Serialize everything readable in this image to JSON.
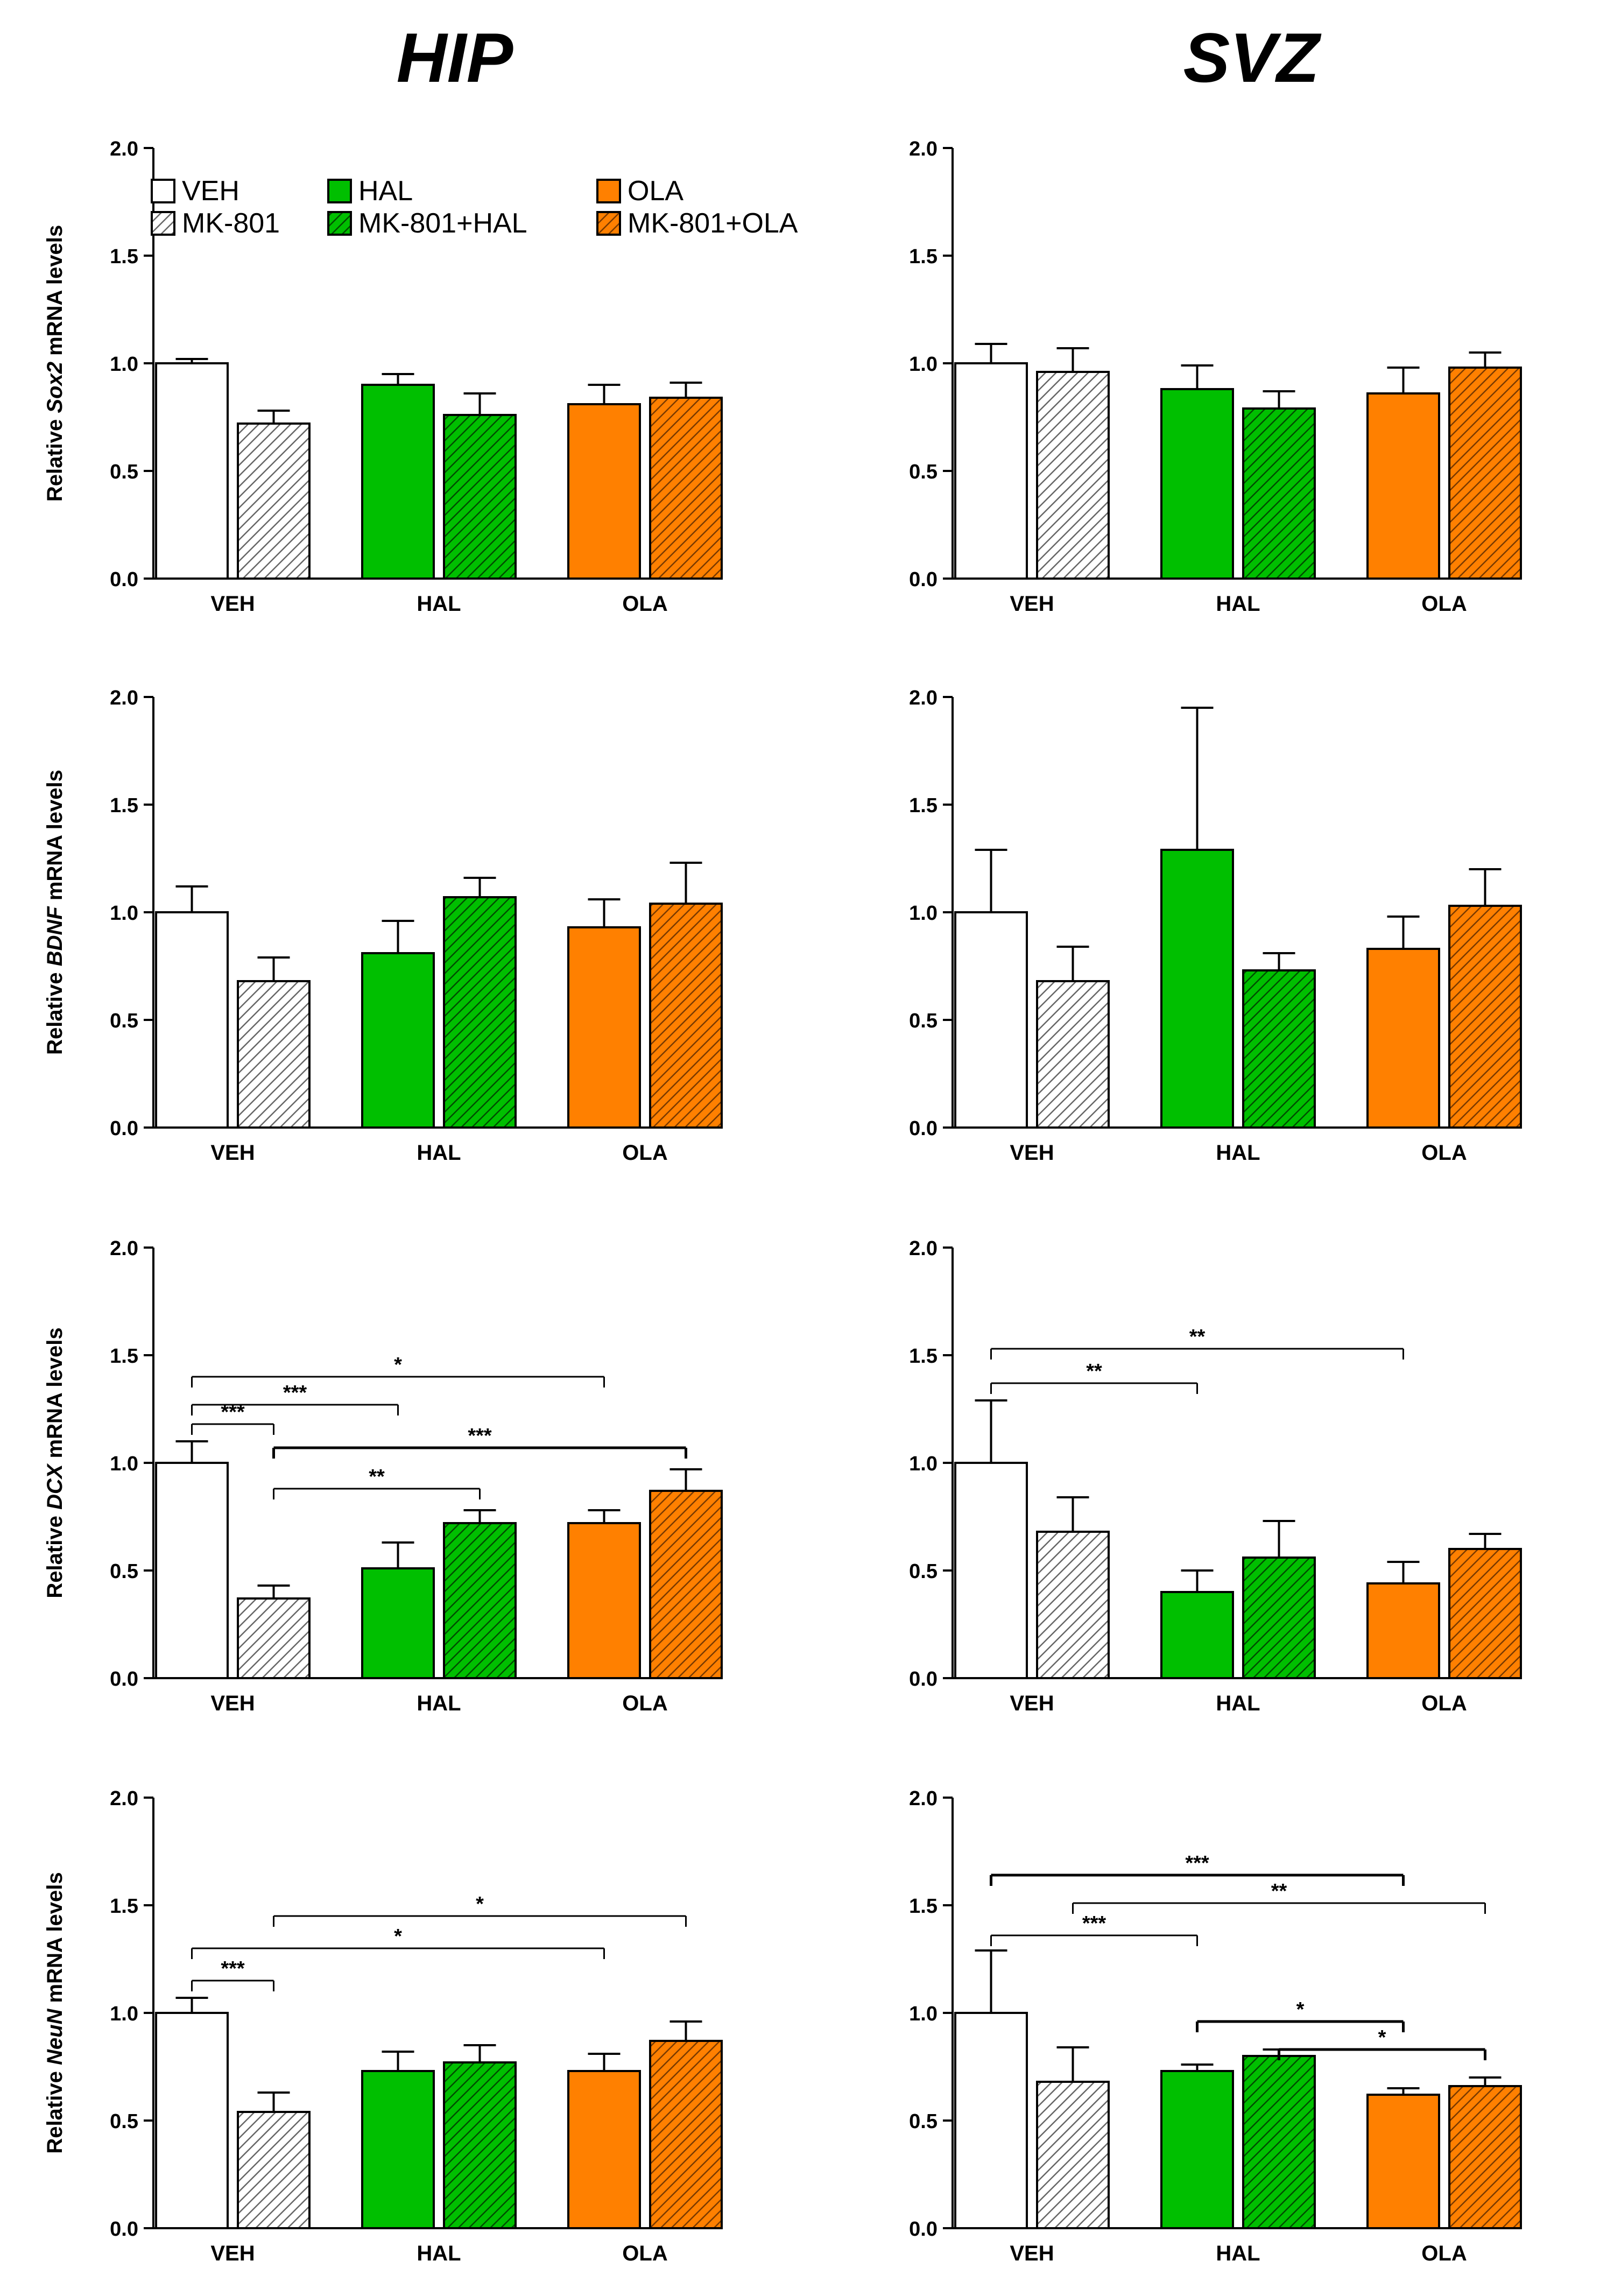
{
  "titles": {
    "left": "HIP",
    "right": "SVZ"
  },
  "colors": {
    "veh": "#ffffff",
    "mk": "#ffffff",
    "mk_hatch": "#666666",
    "hal": "#00bf00",
    "hal_hatch": "#004d00",
    "ola": "#ff8000",
    "ola_hatch": "#7a3a00",
    "axis": "#000000"
  },
  "legend": [
    {
      "label": "VEH",
      "style": "veh"
    },
    {
      "label": "MK-801",
      "style": "mk"
    },
    {
      "label": "HAL",
      "style": "hal"
    },
    {
      "label": "MK-801+HAL",
      "style": "mhal"
    },
    {
      "label": "OLA",
      "style": "ola"
    },
    {
      "label": "MK-801+OLA",
      "style": "mola"
    }
  ],
  "chart_data": [
    {
      "id": "hip-sox2",
      "type": "bar",
      "region": "HIP",
      "gene": "Sox2",
      "ylabel_pre": "Relative ",
      "ylabel_gene": "Sox2",
      "ylabel_post": " mRNA levels",
      "ylim": [
        0,
        2.0
      ],
      "yticks": [
        "0.0",
        "0.5",
        "1.0",
        "1.5",
        "2.0"
      ],
      "groups": [
        "VEH",
        "HAL",
        "OLA"
      ],
      "bars": [
        {
          "group": "VEH",
          "series": "VEH",
          "value": 1.0,
          "err": 0.02
        },
        {
          "group": "VEH",
          "series": "MK-801",
          "value": 0.72,
          "err": 0.06
        },
        {
          "group": "HAL",
          "series": "HAL",
          "value": 0.9,
          "err": 0.05
        },
        {
          "group": "HAL",
          "series": "MK-801+HAL",
          "value": 0.76,
          "err": 0.1
        },
        {
          "group": "OLA",
          "series": "OLA",
          "value": 0.81,
          "err": 0.09
        },
        {
          "group": "OLA",
          "series": "MK-801+OLA",
          "value": 0.84,
          "err": 0.07
        }
      ],
      "significance": []
    },
    {
      "id": "svz-sox2",
      "type": "bar",
      "region": "SVZ",
      "gene": "Sox2",
      "ylabel_pre": "",
      "ylabel_gene": "",
      "ylabel_post": "",
      "ylim": [
        0,
        2.0
      ],
      "yticks": [
        "0.0",
        "0.5",
        "1.0",
        "1.5",
        "2.0"
      ],
      "groups": [
        "VEH",
        "HAL",
        "OLA"
      ],
      "bars": [
        {
          "group": "VEH",
          "series": "VEH",
          "value": 1.0,
          "err": 0.09
        },
        {
          "group": "VEH",
          "series": "MK-801",
          "value": 0.96,
          "err": 0.11
        },
        {
          "group": "HAL",
          "series": "HAL",
          "value": 0.88,
          "err": 0.11
        },
        {
          "group": "HAL",
          "series": "MK-801+HAL",
          "value": 0.79,
          "err": 0.08
        },
        {
          "group": "OLA",
          "series": "OLA",
          "value": 0.86,
          "err": 0.12
        },
        {
          "group": "OLA",
          "series": "MK-801+OLA",
          "value": 0.98,
          "err": 0.07
        }
      ],
      "significance": []
    },
    {
      "id": "hip-bdnf",
      "type": "bar",
      "region": "HIP",
      "gene": "BDNF",
      "ylabel_pre": "Relative ",
      "ylabel_gene": "BDNF",
      "ylabel_post": " mRNA levels",
      "ylim": [
        0,
        2.0
      ],
      "yticks": [
        "0.0",
        "0.5",
        "1.0",
        "1.5",
        "2.0"
      ],
      "groups": [
        "VEH",
        "HAL",
        "OLA"
      ],
      "bars": [
        {
          "group": "VEH",
          "series": "VEH",
          "value": 1.0,
          "err": 0.12
        },
        {
          "group": "VEH",
          "series": "MK-801",
          "value": 0.68,
          "err": 0.11
        },
        {
          "group": "HAL",
          "series": "HAL",
          "value": 0.81,
          "err": 0.15
        },
        {
          "group": "HAL",
          "series": "MK-801+HAL",
          "value": 1.07,
          "err": 0.09
        },
        {
          "group": "OLA",
          "series": "OLA",
          "value": 0.93,
          "err": 0.13
        },
        {
          "group": "OLA",
          "series": "MK-801+OLA",
          "value": 1.04,
          "err": 0.19
        }
      ],
      "significance": []
    },
    {
      "id": "svz-bdnf",
      "type": "bar",
      "region": "SVZ",
      "gene": "BDNF",
      "ylabel_pre": "",
      "ylabel_gene": "",
      "ylabel_post": "",
      "ylim": [
        0,
        2.0
      ],
      "yticks": [
        "0.0",
        "0.5",
        "1.0",
        "1.5",
        "2.0"
      ],
      "groups": [
        "VEH",
        "HAL",
        "OLA"
      ],
      "bars": [
        {
          "group": "VEH",
          "series": "VEH",
          "value": 1.0,
          "err": 0.29
        },
        {
          "group": "VEH",
          "series": "MK-801",
          "value": 0.68,
          "err": 0.16
        },
        {
          "group": "HAL",
          "series": "HAL",
          "value": 1.29,
          "err": 0.66
        },
        {
          "group": "HAL",
          "series": "MK-801+HAL",
          "value": 0.73,
          "err": 0.08
        },
        {
          "group": "OLA",
          "series": "OLA",
          "value": 0.83,
          "err": 0.15
        },
        {
          "group": "OLA",
          "series": "MK-801+OLA",
          "value": 1.03,
          "err": 0.17
        }
      ],
      "significance": []
    },
    {
      "id": "hip-dcx",
      "type": "bar",
      "region": "HIP",
      "gene": "DCX",
      "ylabel_pre": "Relative ",
      "ylabel_gene": "DCX",
      "ylabel_post": " mRNA levels",
      "ylim": [
        0,
        2.0
      ],
      "yticks": [
        "0.0",
        "0.5",
        "1.0",
        "1.5",
        "2.0"
      ],
      "groups": [
        "VEH",
        "HAL",
        "OLA"
      ],
      "bars": [
        {
          "group": "VEH",
          "series": "VEH",
          "value": 1.0,
          "err": 0.1
        },
        {
          "group": "VEH",
          "series": "MK-801",
          "value": 0.37,
          "err": 0.06
        },
        {
          "group": "HAL",
          "series": "HAL",
          "value": 0.51,
          "err": 0.12
        },
        {
          "group": "HAL",
          "series": "MK-801+HAL",
          "value": 0.72,
          "err": 0.06
        },
        {
          "group": "OLA",
          "series": "OLA",
          "value": 0.72,
          "err": 0.06
        },
        {
          "group": "OLA",
          "series": "MK-801+OLA",
          "value": 0.87,
          "err": 0.1
        }
      ],
      "significance": [
        {
          "from": 0,
          "to": 4,
          "y": 1.4,
          "label": "*",
          "bold": false
        },
        {
          "from": 0,
          "to": 2,
          "y": 1.27,
          "label": "***",
          "bold": false
        },
        {
          "from": 0,
          "to": 1,
          "y": 1.18,
          "label": "***",
          "bold": false
        },
        {
          "from": 1,
          "to": 5,
          "y": 1.07,
          "label": "***",
          "bold": true
        },
        {
          "from": 1,
          "to": 3,
          "y": 0.88,
          "label": "**",
          "bold": false
        }
      ]
    },
    {
      "id": "svz-dcx",
      "type": "bar",
      "region": "SVZ",
      "gene": "DCX",
      "ylabel_pre": "",
      "ylabel_gene": "",
      "ylabel_post": "",
      "ylim": [
        0,
        2.0
      ],
      "yticks": [
        "0.0",
        "0.5",
        "1.0",
        "1.5",
        "2.0"
      ],
      "groups": [
        "VEH",
        "HAL",
        "OLA"
      ],
      "bars": [
        {
          "group": "VEH",
          "series": "VEH",
          "value": 1.0,
          "err": 0.29
        },
        {
          "group": "VEH",
          "series": "MK-801",
          "value": 0.68,
          "err": 0.16
        },
        {
          "group": "HAL",
          "series": "HAL",
          "value": 0.4,
          "err": 0.1
        },
        {
          "group": "HAL",
          "series": "MK-801+HAL",
          "value": 0.56,
          "err": 0.17
        },
        {
          "group": "OLA",
          "series": "OLA",
          "value": 0.44,
          "err": 0.1
        },
        {
          "group": "OLA",
          "series": "MK-801+OLA",
          "value": 0.6,
          "err": 0.07
        }
      ],
      "significance": [
        {
          "from": 0,
          "to": 4,
          "y": 1.53,
          "label": "**",
          "bold": false
        },
        {
          "from": 0,
          "to": 2,
          "y": 1.37,
          "label": "**",
          "bold": false
        }
      ]
    },
    {
      "id": "hip-neun",
      "type": "bar",
      "region": "HIP",
      "gene": "NeuN",
      "ylabel_pre": "Relative ",
      "ylabel_gene": "NeuN",
      "ylabel_post": " mRNA levels",
      "ylim": [
        0,
        2.0
      ],
      "yticks": [
        "0.0",
        "0.5",
        "1.0",
        "1.5",
        "2.0"
      ],
      "groups": [
        "VEH",
        "HAL",
        "OLA"
      ],
      "bars": [
        {
          "group": "VEH",
          "series": "VEH",
          "value": 1.0,
          "err": 0.07
        },
        {
          "group": "VEH",
          "series": "MK-801",
          "value": 0.54,
          "err": 0.09
        },
        {
          "group": "HAL",
          "series": "HAL",
          "value": 0.73,
          "err": 0.09
        },
        {
          "group": "HAL",
          "series": "MK-801+HAL",
          "value": 0.77,
          "err": 0.08
        },
        {
          "group": "OLA",
          "series": "OLA",
          "value": 0.73,
          "err": 0.08
        },
        {
          "group": "OLA",
          "series": "MK-801+OLA",
          "value": 0.87,
          "err": 0.09
        }
      ],
      "significance": [
        {
          "from": 1,
          "to": 5,
          "y": 1.45,
          "label": "*",
          "bold": false
        },
        {
          "from": 0,
          "to": 4,
          "y": 1.3,
          "label": "*",
          "bold": false
        },
        {
          "from": 0,
          "to": 1,
          "y": 1.15,
          "label": "***",
          "bold": false
        }
      ]
    },
    {
      "id": "svz-neun",
      "type": "bar",
      "region": "SVZ",
      "gene": "NeuN",
      "ylabel_pre": "",
      "ylabel_gene": "",
      "ylabel_post": "",
      "ylim": [
        0,
        2.0
      ],
      "yticks": [
        "0.0",
        "0.5",
        "1.0",
        "1.5",
        "2.0"
      ],
      "groups": [
        "VEH",
        "HAL",
        "OLA"
      ],
      "bars": [
        {
          "group": "VEH",
          "series": "VEH",
          "value": 1.0,
          "err": 0.29
        },
        {
          "group": "VEH",
          "series": "MK-801",
          "value": 0.68,
          "err": 0.16
        },
        {
          "group": "HAL",
          "series": "HAL",
          "value": 0.73,
          "err": 0.03
        },
        {
          "group": "HAL",
          "series": "MK-801+HAL",
          "value": 0.8,
          "err": 0.03
        },
        {
          "group": "OLA",
          "series": "OLA",
          "value": 0.62,
          "err": 0.03
        },
        {
          "group": "OLA",
          "series": "MK-801+OLA",
          "value": 0.66,
          "err": 0.04
        }
      ],
      "significance": [
        {
          "from": 0,
          "to": 4,
          "y": 1.64,
          "label": "***",
          "bold": true
        },
        {
          "from": 1,
          "to": 5,
          "y": 1.51,
          "label": "**",
          "bold": false
        },
        {
          "from": 0,
          "to": 2,
          "y": 1.36,
          "label": "***",
          "bold": false
        },
        {
          "from": 2,
          "to": 4,
          "y": 0.96,
          "label": "*",
          "bold": true
        },
        {
          "from": 3,
          "to": 5,
          "y": 0.83,
          "label": "*",
          "bold": true
        }
      ]
    }
  ]
}
